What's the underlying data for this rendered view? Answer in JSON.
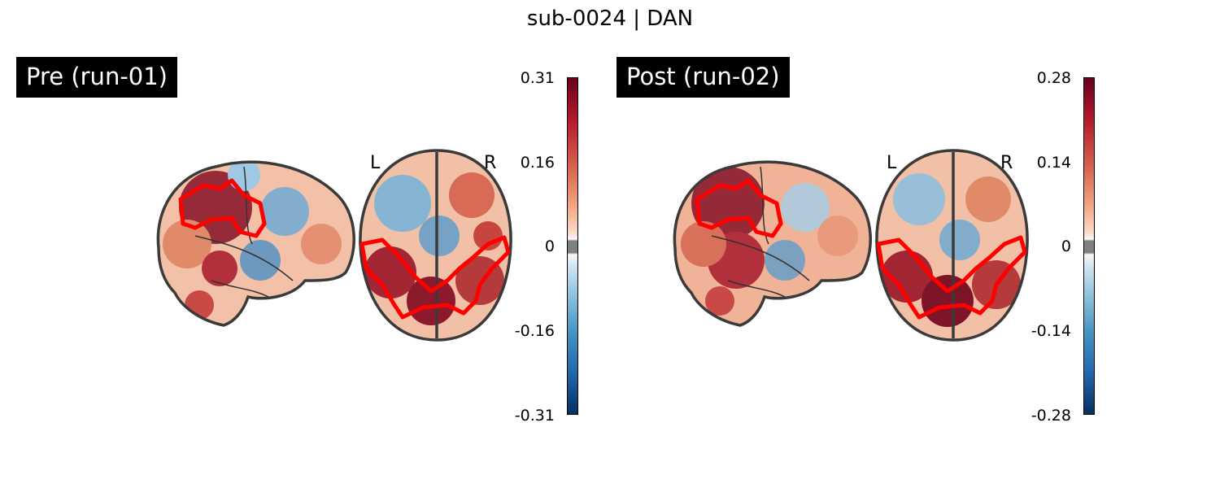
{
  "figure": {
    "title": "sub-0024 | DAN"
  },
  "panels": [
    {
      "label": "Pre (run-01)",
      "hemi_left": "L",
      "hemi_right": "R",
      "colorbar": {
        "ticks": [
          "0.31",
          "0.16",
          "0",
          "-0.16",
          "-0.31"
        ],
        "cmap": "RdBu_r",
        "vmin": -0.31,
        "vmax": 0.31
      }
    },
    {
      "label": "Post (run-02)",
      "hemi_left": "L",
      "hemi_right": "R",
      "colorbar": {
        "ticks": [
          "0.28",
          "0.14",
          "0",
          "-0.14",
          "-0.28"
        ],
        "cmap": "RdBu_r",
        "vmin": -0.28,
        "vmax": 0.28
      }
    }
  ],
  "colors": {
    "outline": "#ff0000",
    "brain_edge": "#3a3a3a",
    "hot": "#9b1c2e",
    "cold": "#3f87bd"
  }
}
